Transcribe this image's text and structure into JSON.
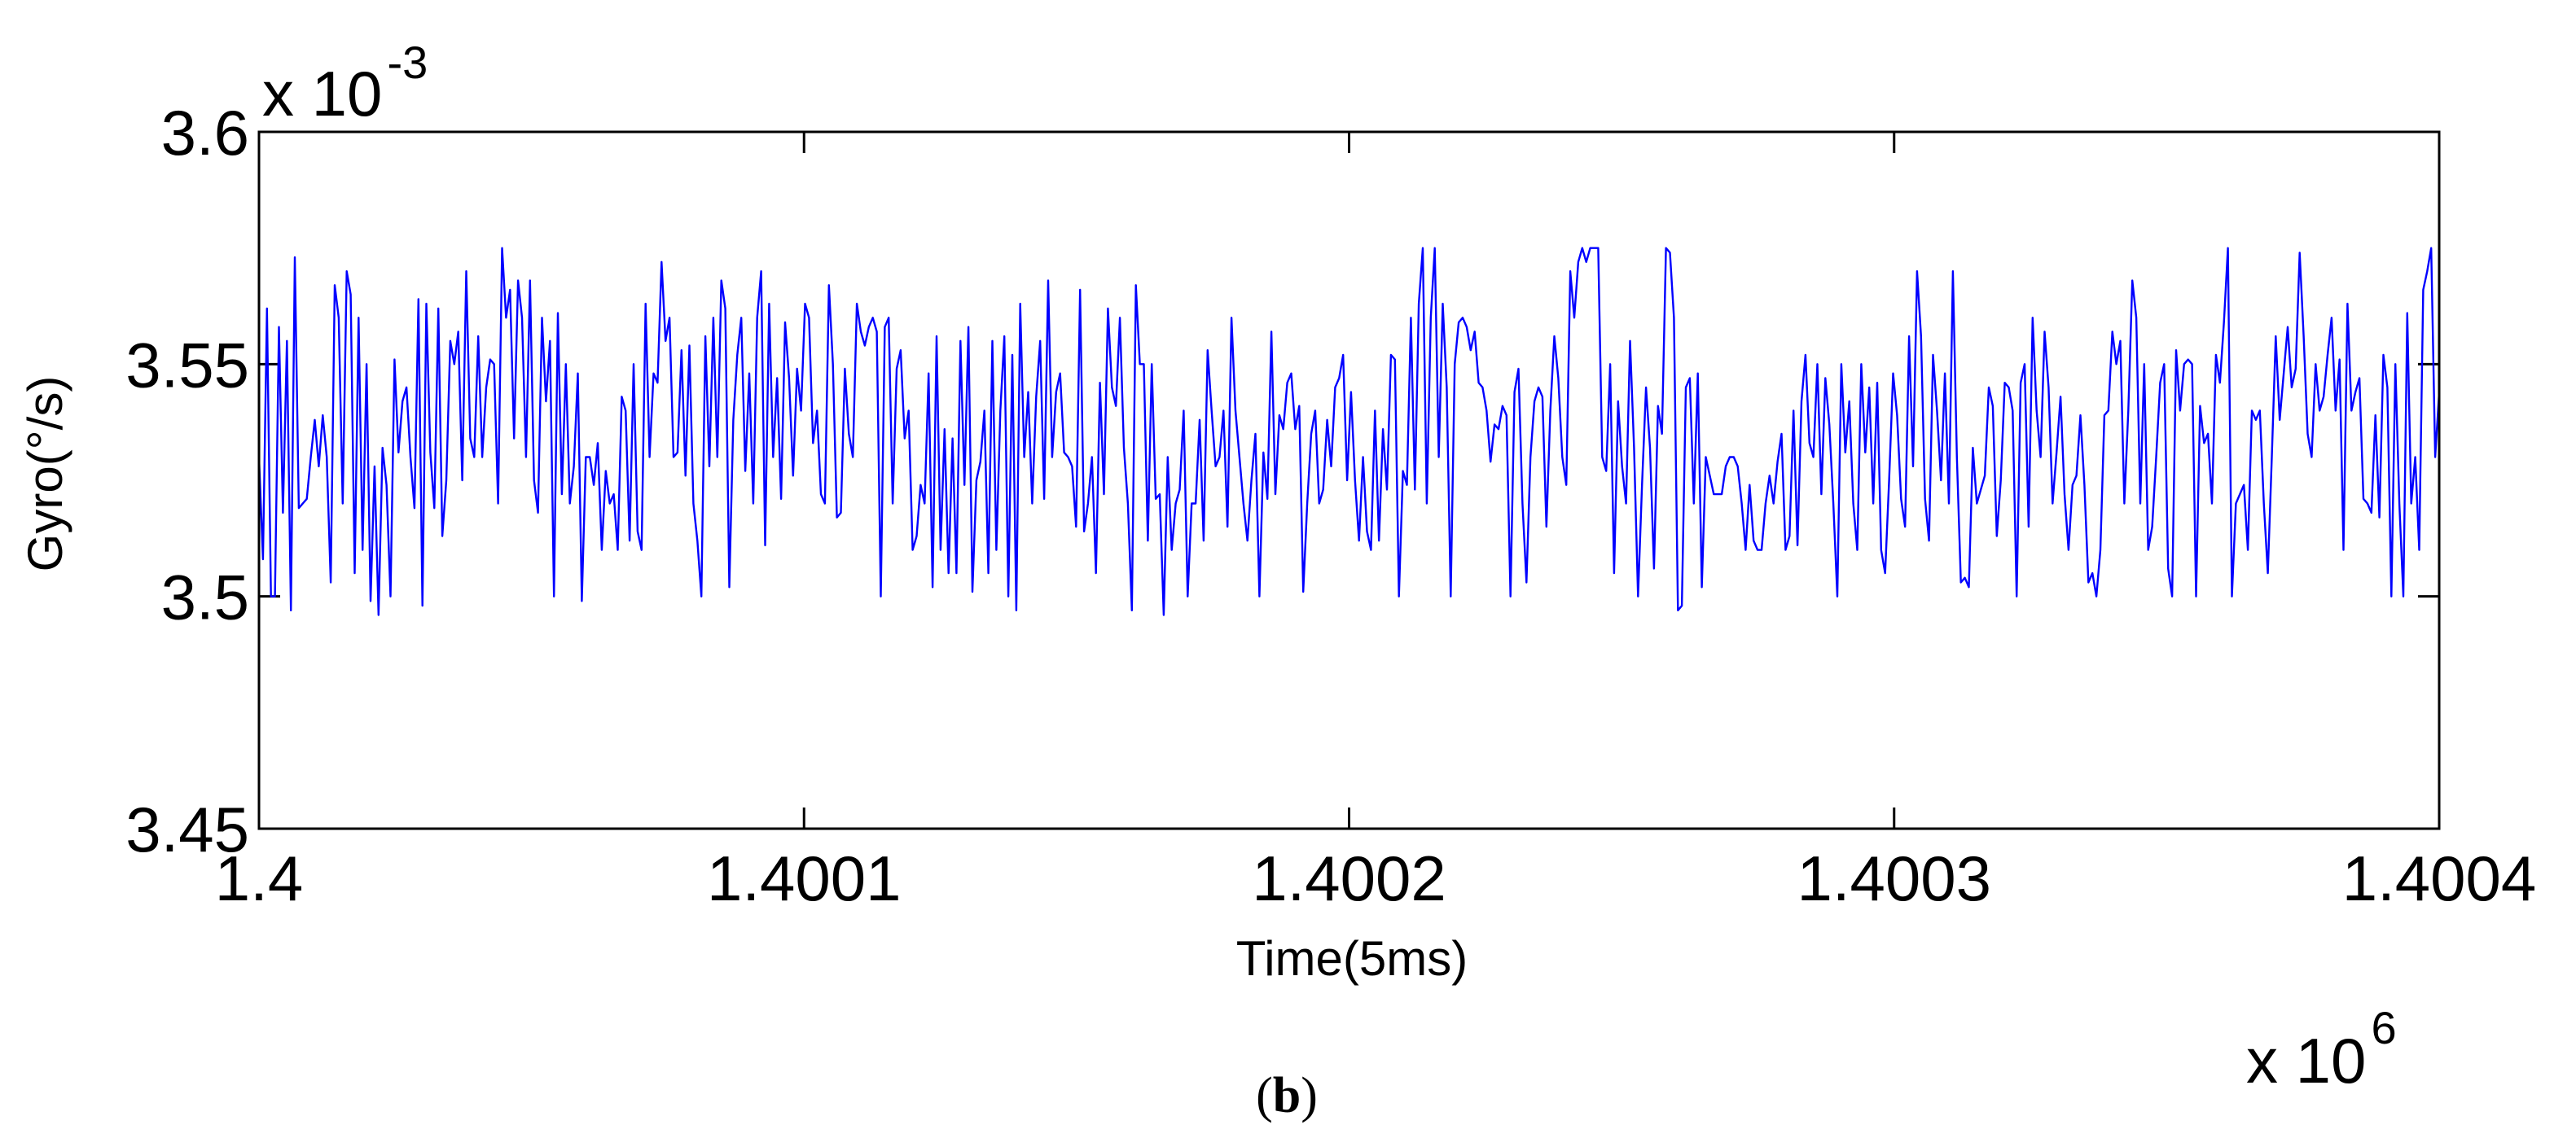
{
  "chart_data": {
    "type": "line",
    "xlabel": "Time(5ms)",
    "ylabel": "Gyro(°/s)",
    "x_exponent_label": {
      "base": "x 10",
      "power": "6"
    },
    "y_exponent_label": {
      "base": "x 10",
      "power": "-3"
    },
    "xlim": [
      1400000,
      1400400
    ],
    "ylim": [
      0.00345,
      0.0036
    ],
    "xticks": [
      1400000,
      1400100,
      1400200,
      1400300,
      1400400
    ],
    "xtick_labels": [
      "1.4",
      "1.4001",
      "1.4002",
      "1.4003",
      "1.4004"
    ],
    "yticks": [
      0.00345,
      0.0035,
      0.00355,
      0.0036
    ],
    "ytick_labels": [
      "3.45",
      "3.5",
      "3.55",
      "3.6"
    ],
    "grid": false,
    "line_color": "#0000ff",
    "series": [
      {
        "x_start": 1400000,
        "x_step": 1,
        "values": [
          0.00353,
          0.003508,
          0.003562,
          0.0035,
          0.0035,
          0.003558,
          0.003518,
          0.003555,
          0.003497,
          0.003573,
          0.003519,
          0.00352,
          0.003521,
          0.00353,
          0.003538,
          0.003528,
          0.003539,
          0.00353,
          0.003503,
          0.003567,
          0.00356,
          0.00352,
          0.00357,
          0.003565,
          0.003505,
          0.00356,
          0.00351,
          0.00355,
          0.003499,
          0.003528,
          0.003496,
          0.003532,
          0.003524,
          0.0035,
          0.003551,
          0.003531,
          0.003542,
          0.003545,
          0.00353,
          0.003519,
          0.003564,
          0.003498,
          0.003563,
          0.003531,
          0.003519,
          0.003562,
          0.003513,
          0.003525,
          0.003555,
          0.00355,
          0.003557,
          0.003525,
          0.00357,
          0.003534,
          0.00353,
          0.003556,
          0.00353,
          0.003545,
          0.003551,
          0.00355,
          0.00352,
          0.003575,
          0.00356,
          0.003566,
          0.003534,
          0.003568,
          0.00356,
          0.00353,
          0.003568,
          0.003525,
          0.003518,
          0.00356,
          0.003542,
          0.003555,
          0.0035,
          0.003561,
          0.003522,
          0.00355,
          0.00352,
          0.003528,
          0.003548,
          0.003499,
          0.00353,
          0.00353,
          0.003524,
          0.003533,
          0.00351,
          0.003527,
          0.00352,
          0.003522,
          0.00351,
          0.003543,
          0.00354,
          0.003512,
          0.00355,
          0.003514,
          0.00351,
          0.003563,
          0.00353,
          0.003548,
          0.003546,
          0.003572,
          0.003555,
          0.00356,
          0.00353,
          0.003531,
          0.003553,
          0.003526,
          0.003554,
          0.00352,
          0.003512,
          0.0035,
          0.003556,
          0.003528,
          0.00356,
          0.00353,
          0.003568,
          0.003562,
          0.003502,
          0.003538,
          0.003552,
          0.00356,
          0.003527,
          0.003548,
          0.00352,
          0.00356,
          0.00357,
          0.003511,
          0.003563,
          0.00353,
          0.003547,
          0.003521,
          0.003559,
          0.003547,
          0.003526,
          0.003549,
          0.00354,
          0.003563,
          0.00356,
          0.003533,
          0.00354,
          0.003522,
          0.00352,
          0.003567,
          0.00355,
          0.003517,
          0.003518,
          0.003549,
          0.003535,
          0.00353,
          0.003563,
          0.003557,
          0.003554,
          0.003558,
          0.00356,
          0.003557,
          0.0035,
          0.003558,
          0.00356,
          0.00352,
          0.003549,
          0.003553,
          0.003534,
          0.00354,
          0.00351,
          0.003513,
          0.003524,
          0.00352,
          0.003548,
          0.003502,
          0.003556,
          0.00351,
          0.003536,
          0.003505,
          0.003534,
          0.003505,
          0.003555,
          0.003524,
          0.003558,
          0.003501,
          0.003525,
          0.003529,
          0.00354,
          0.003505,
          0.003555,
          0.00351,
          0.00354,
          0.003556,
          0.0035,
          0.003552,
          0.003497,
          0.003563,
          0.00353,
          0.003544,
          0.00352,
          0.003543,
          0.003555,
          0.003521,
          0.003568,
          0.00353,
          0.003544,
          0.003548,
          0.003531,
          0.00353,
          0.003528,
          0.003515,
          0.003566,
          0.003514,
          0.00352,
          0.00353,
          0.003505,
          0.003546,
          0.003522,
          0.003562,
          0.003545,
          0.003541,
          0.00356,
          0.003532,
          0.00352,
          0.003497,
          0.003567,
          0.00355,
          0.00355,
          0.003512,
          0.00355,
          0.003521,
          0.003522,
          0.003496,
          0.00353,
          0.00351,
          0.00352,
          0.003523,
          0.00354,
          0.0035,
          0.00352,
          0.00352,
          0.003538,
          0.003512,
          0.003553,
          0.00354,
          0.003528,
          0.00353,
          0.00354,
          0.003515,
          0.00356,
          0.00354,
          0.00353,
          0.00352,
          0.003512,
          0.003525,
          0.003535,
          0.0035,
          0.003531,
          0.003521,
          0.003557,
          0.003522,
          0.003539,
          0.003536,
          0.003546,
          0.003548,
          0.003536,
          0.003541,
          0.003501,
          0.00352,
          0.003535,
          0.00354,
          0.00352,
          0.003523,
          0.003538,
          0.003528,
          0.003545,
          0.003547,
          0.003552,
          0.003525,
          0.003544,
          0.003525,
          0.003512,
          0.00353,
          0.003514,
          0.00351,
          0.00354,
          0.003512,
          0.003536,
          0.003523,
          0.003552,
          0.003551,
          0.0035,
          0.003527,
          0.003524,
          0.00356,
          0.003523,
          0.003563,
          0.003575,
          0.00352,
          0.00356,
          0.003575,
          0.00353,
          0.003563,
          0.003545,
          0.0035,
          0.00355,
          0.003559,
          0.00356,
          0.003558,
          0.003553,
          0.003557,
          0.003546,
          0.003545,
          0.00354,
          0.003529,
          0.003537,
          0.003536,
          0.003541,
          0.003539,
          0.0035,
          0.003544,
          0.003549,
          0.00352,
          0.003503,
          0.00353,
          0.003542,
          0.003545,
          0.003543,
          0.003515,
          0.00354,
          0.003556,
          0.003547,
          0.00353,
          0.003524,
          0.00357,
          0.00356,
          0.003572,
          0.003575,
          0.003572,
          0.003575,
          0.003575,
          0.003575,
          0.00353,
          0.003527,
          0.00355,
          0.003505,
          0.003542,
          0.003528,
          0.00352,
          0.003555,
          0.003532,
          0.0035,
          0.003524,
          0.003545,
          0.003532,
          0.003506,
          0.003541,
          0.003535,
          0.003575,
          0.003574,
          0.00356,
          0.003497,
          0.003498,
          0.003545,
          0.003547,
          0.00352,
          0.003548,
          0.003502,
          0.00353,
          0.003526,
          0.003522,
          0.003522,
          0.003522,
          0.003528,
          0.00353,
          0.00353,
          0.003528,
          0.00352,
          0.00351,
          0.003524,
          0.003512,
          0.00351,
          0.00351,
          0.00352,
          0.003526,
          0.00352,
          0.003529,
          0.003535,
          0.00351,
          0.003513,
          0.00354,
          0.003511,
          0.003542,
          0.003552,
          0.003533,
          0.00353,
          0.00355,
          0.003522,
          0.003547,
          0.003537,
          0.00352,
          0.0035,
          0.00355,
          0.003531,
          0.003542,
          0.00352,
          0.00351,
          0.00355,
          0.003531,
          0.003545,
          0.00352,
          0.003546,
          0.00351,
          0.003505,
          0.003525,
          0.003548,
          0.003539,
          0.003521,
          0.003515,
          0.003556,
          0.003528,
          0.00357,
          0.003556,
          0.003521,
          0.003512,
          0.003552,
          0.00354,
          0.003525,
          0.003548,
          0.00352,
          0.00357,
          0.00353,
          0.003503,
          0.003504,
          0.003502,
          0.003532,
          0.00352,
          0.003523,
          0.003526,
          0.003545,
          0.003541,
          0.003513,
          0.003525,
          0.003546,
          0.003545,
          0.00354,
          0.0035,
          0.003546,
          0.00355,
          0.003515,
          0.00356,
          0.00354,
          0.00353,
          0.003557,
          0.003545,
          0.00352,
          0.003531,
          0.003543,
          0.003522,
          0.00351,
          0.003524,
          0.003526,
          0.003539,
          0.003524,
          0.003503,
          0.003505,
          0.0035,
          0.00351,
          0.003539,
          0.00354,
          0.003557,
          0.00355,
          0.003555,
          0.00352,
          0.00354,
          0.003568,
          0.00356,
          0.00352,
          0.00355,
          0.00351,
          0.003515,
          0.00353,
          0.003546,
          0.00355,
          0.003506,
          0.0035,
          0.003553,
          0.00354,
          0.00355,
          0.003551,
          0.00355,
          0.0035,
          0.003541,
          0.003533,
          0.003535,
          0.00352,
          0.003552,
          0.003546,
          0.003559,
          0.003575,
          0.0035,
          0.00352,
          0.003522,
          0.003524,
          0.00351,
          0.00354,
          0.003538,
          0.00354,
          0.00352,
          0.003505,
          0.00353,
          0.003556,
          0.003538,
          0.003548,
          0.003558,
          0.003545,
          0.003549,
          0.003574,
          0.003556,
          0.003535,
          0.00353,
          0.00355,
          0.00354,
          0.003543,
          0.003552,
          0.00356,
          0.00354,
          0.003551,
          0.00351,
          0.003563,
          0.00354,
          0.003544,
          0.003547,
          0.003521,
          0.00352,
          0.003518,
          0.003539,
          0.003517,
          0.003552,
          0.003545,
          0.0035,
          0.00355,
          0.00352,
          0.0035,
          0.003561,
          0.00352,
          0.00353,
          0.00351,
          0.003566,
          0.00357,
          0.003575,
          0.00353,
          0.003544
        ]
      }
    ]
  },
  "caption": {
    "open": "(",
    "letter": "b",
    "close": ")"
  }
}
